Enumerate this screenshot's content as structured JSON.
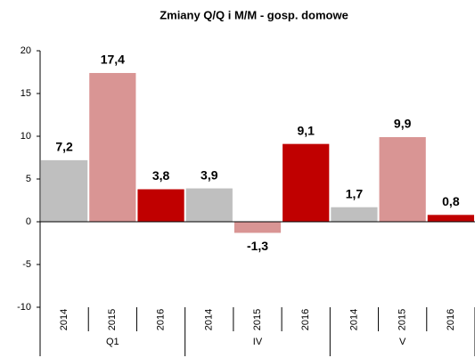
{
  "chart_data": {
    "type": "bar",
    "title": "Zmiany Q/Q i M/M - gosp. domowe",
    "categories": [
      "2014",
      "2015",
      "2016",
      "2014",
      "2015",
      "2016",
      "2014",
      "2015",
      "2016"
    ],
    "groups": [
      "Q1",
      "IV",
      "V"
    ],
    "values": [
      7.2,
      17.4,
      3.8,
      3.9,
      -1.3,
      9.1,
      1.7,
      9.9,
      0.8
    ],
    "value_labels": [
      "7,2",
      "17,4",
      "3,8",
      "3,9",
      "-1,3",
      "9,1",
      "1,7",
      "9,9",
      "0,8"
    ],
    "colors": [
      "#bfbfbf",
      "#d99594",
      "#c00000"
    ],
    "ylim": [
      -10,
      20
    ],
    "yticks": [
      -10,
      -5,
      0,
      5,
      10,
      15,
      20
    ],
    "grid": false
  }
}
